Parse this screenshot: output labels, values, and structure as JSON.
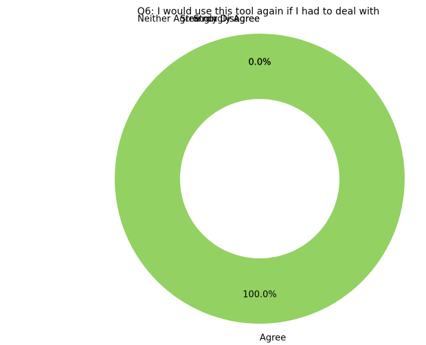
{
  "chart_data": {
    "type": "pie",
    "variant": "donut",
    "title": "Q6: I would use this tool again if I had to deal with",
    "categories": [
      "Agree",
      "Neither Agree nor Disagree",
      "Strongly Disagree",
      "Strongly Agree"
    ],
    "values": [
      100.0,
      0.0,
      0.0,
      0.0
    ],
    "percent_labels": [
      "100.0%",
      "0.0%",
      "0.0%",
      "0.0%"
    ],
    "colors": [
      "#93d162",
      "#93d162",
      "#93d162",
      "#93d162"
    ],
    "start_angle_deg": 90,
    "legend": "none"
  }
}
